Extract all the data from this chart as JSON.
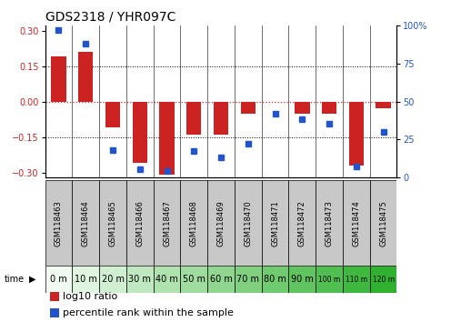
{
  "title": "GDS2318 / YHR097C",
  "samples": [
    "GSM118463",
    "GSM118464",
    "GSM118465",
    "GSM118466",
    "GSM118467",
    "GSM118468",
    "GSM118469",
    "GSM118470",
    "GSM118471",
    "GSM118472",
    "GSM118473",
    "GSM118474",
    "GSM118475"
  ],
  "time_labels": [
    "0 m",
    "10 m",
    "20 m",
    "30 m",
    "40 m",
    "50 m",
    "60 m",
    "70 m",
    "80 m",
    "90 m",
    "100 m",
    "110 m",
    "120 m"
  ],
  "time_bg_colors": [
    "#f0faf0",
    "#e0f5e0",
    "#d0efd0",
    "#c0e8c0",
    "#b0e2b0",
    "#a0dca0",
    "#90d690",
    "#80d080",
    "#70ca70",
    "#60c460",
    "#50be50",
    "#40b840",
    "#30b230"
  ],
  "log10_ratio": [
    0.19,
    0.21,
    -0.11,
    -0.26,
    -0.31,
    -0.14,
    -0.14,
    -0.05,
    0.0,
    -0.05,
    -0.05,
    -0.27,
    -0.03
  ],
  "percentile_rank": [
    97,
    88,
    18,
    5,
    4,
    17,
    13,
    22,
    42,
    38,
    35,
    7,
    30
  ],
  "ylim_left": [
    -0.32,
    0.32
  ],
  "ylim_right": [
    0,
    100
  ],
  "yticks_left": [
    -0.3,
    -0.15,
    0,
    0.15,
    0.3
  ],
  "yticks_right": [
    0,
    25,
    50,
    75,
    100
  ],
  "bar_color": "#cc2222",
  "dot_color": "#2255cc",
  "zero_line_color": "#cc2222",
  "title_fontsize": 10,
  "tick_fontsize": 7,
  "sample_fontsize": 6,
  "time_fontsize": 7,
  "legend_fontsize": 8
}
